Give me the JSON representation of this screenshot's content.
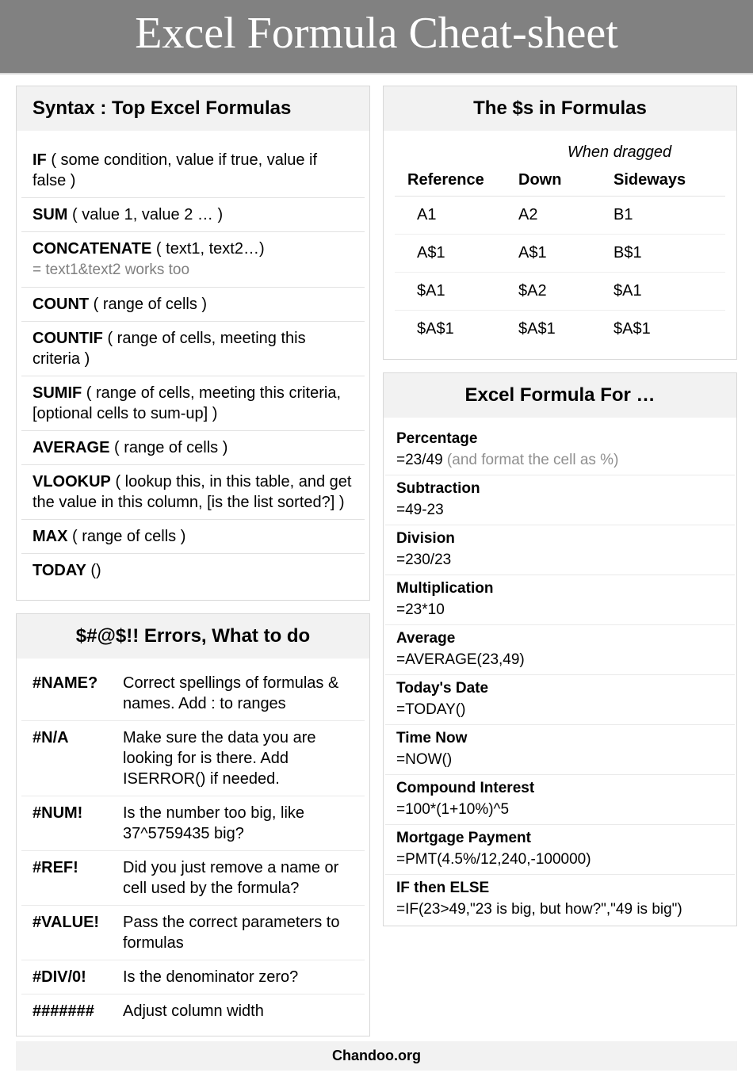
{
  "header_title": "Excel Formula Cheat-sheet",
  "footer": "Chandoo.org",
  "colors": {
    "header_bg": "#818181",
    "header_text": "#ffffff",
    "box_border": "#d8d8d8",
    "box_title_bg": "#f2f2f2",
    "note_text": "#808080"
  },
  "syntax": {
    "title": "Syntax : Top Excel Formulas",
    "rows": [
      {
        "fn": "IF",
        "args": " ( some condition, value if true, value if false )",
        "note": ""
      },
      {
        "fn": "SUM",
        "args": " ( value 1, value 2 … )",
        "note": ""
      },
      {
        "fn": "CONCATENATE",
        "args": "  ( text1, text2…)",
        "note": "= text1&text2 works too"
      },
      {
        "fn": "COUNT",
        "args": " ( range of cells )",
        "note": ""
      },
      {
        "fn": "COUNTIF",
        "args": " ( range of cells, meeting this criteria )",
        "note": ""
      },
      {
        "fn": "SUMIF",
        "args": " ( range of cells, meeting this criteria, [optional cells to sum-up] )",
        "note": ""
      },
      {
        "fn": "AVERAGE",
        "args": "  ( range of cells )",
        "note": ""
      },
      {
        "fn": "VLOOKUP",
        "args": " ( lookup this, in this table, and get the value in this column, [is the list sorted?] )",
        "note": ""
      },
      {
        "fn": "MAX",
        "args": "  ( range of cells )",
        "note": ""
      },
      {
        "fn": "TODAY",
        "args": " ()",
        "note": ""
      }
    ]
  },
  "errors": {
    "title": "$#@$!! Errors, What to do",
    "rows": [
      {
        "code": "#NAME?",
        "fix": "Correct spellings of formulas & names. Add : to ranges"
      },
      {
        "code": "#N/A",
        "fix": "Make sure the data you are looking for is there. Add ISERROR() if needed."
      },
      {
        "code": "#NUM!",
        "fix": "Is the number too big, like 37^5759435 big?"
      },
      {
        "code": "#REF!",
        "fix": "Did you just remove a name or cell used by the formula?"
      },
      {
        "code": "#VALUE!",
        "fix": "Pass the correct parameters to formulas"
      },
      {
        "code": "#DIV/0!",
        "fix": "Is the denominator zero?"
      },
      {
        "code": "#######",
        "fix": "Adjust column width"
      }
    ]
  },
  "refs": {
    "title": "The $s in Formulas",
    "super_header": "When dragged",
    "headers": {
      "c1": "Reference",
      "c2": "Down",
      "c3": "Sideways"
    },
    "rows": [
      {
        "c1": "A1",
        "c2": "A2",
        "c3": "B1"
      },
      {
        "c1": "A$1",
        "c2": "A$1",
        "c3": "B$1"
      },
      {
        "c1": "$A1",
        "c2": "$A2",
        "c3": "$A1"
      },
      {
        "c1": "$A$1",
        "c2": "$A$1",
        "c3": "$A$1"
      }
    ]
  },
  "formula_for": {
    "title": "Excel Formula For …",
    "rows": [
      {
        "label": "Percentage",
        "formula": "=23/49 ",
        "note": "(and format the cell as %)"
      },
      {
        "label": "Subtraction",
        "formula": "=49-23",
        "note": ""
      },
      {
        "label": "Division",
        "formula": "=230/23",
        "note": ""
      },
      {
        "label": "Multiplication",
        "formula": "=23*10",
        "note": ""
      },
      {
        "label": "Average",
        "formula": "=AVERAGE(23,49)",
        "note": ""
      },
      {
        "label": "Today's Date",
        "formula": "=TODAY()",
        "note": ""
      },
      {
        "label": "Time Now",
        "formula": "=NOW()",
        "note": ""
      },
      {
        "label": "Compound Interest",
        "formula": "=100*(1+10%)^5",
        "note": ""
      },
      {
        "label": "Mortgage Payment",
        "formula": "=PMT(4.5%/12,240,-100000)",
        "note": ""
      },
      {
        "label": "IF then ELSE",
        "formula": "=IF(23>49,\"23 is big, but how?\",\"49 is big\")",
        "note": ""
      }
    ]
  }
}
